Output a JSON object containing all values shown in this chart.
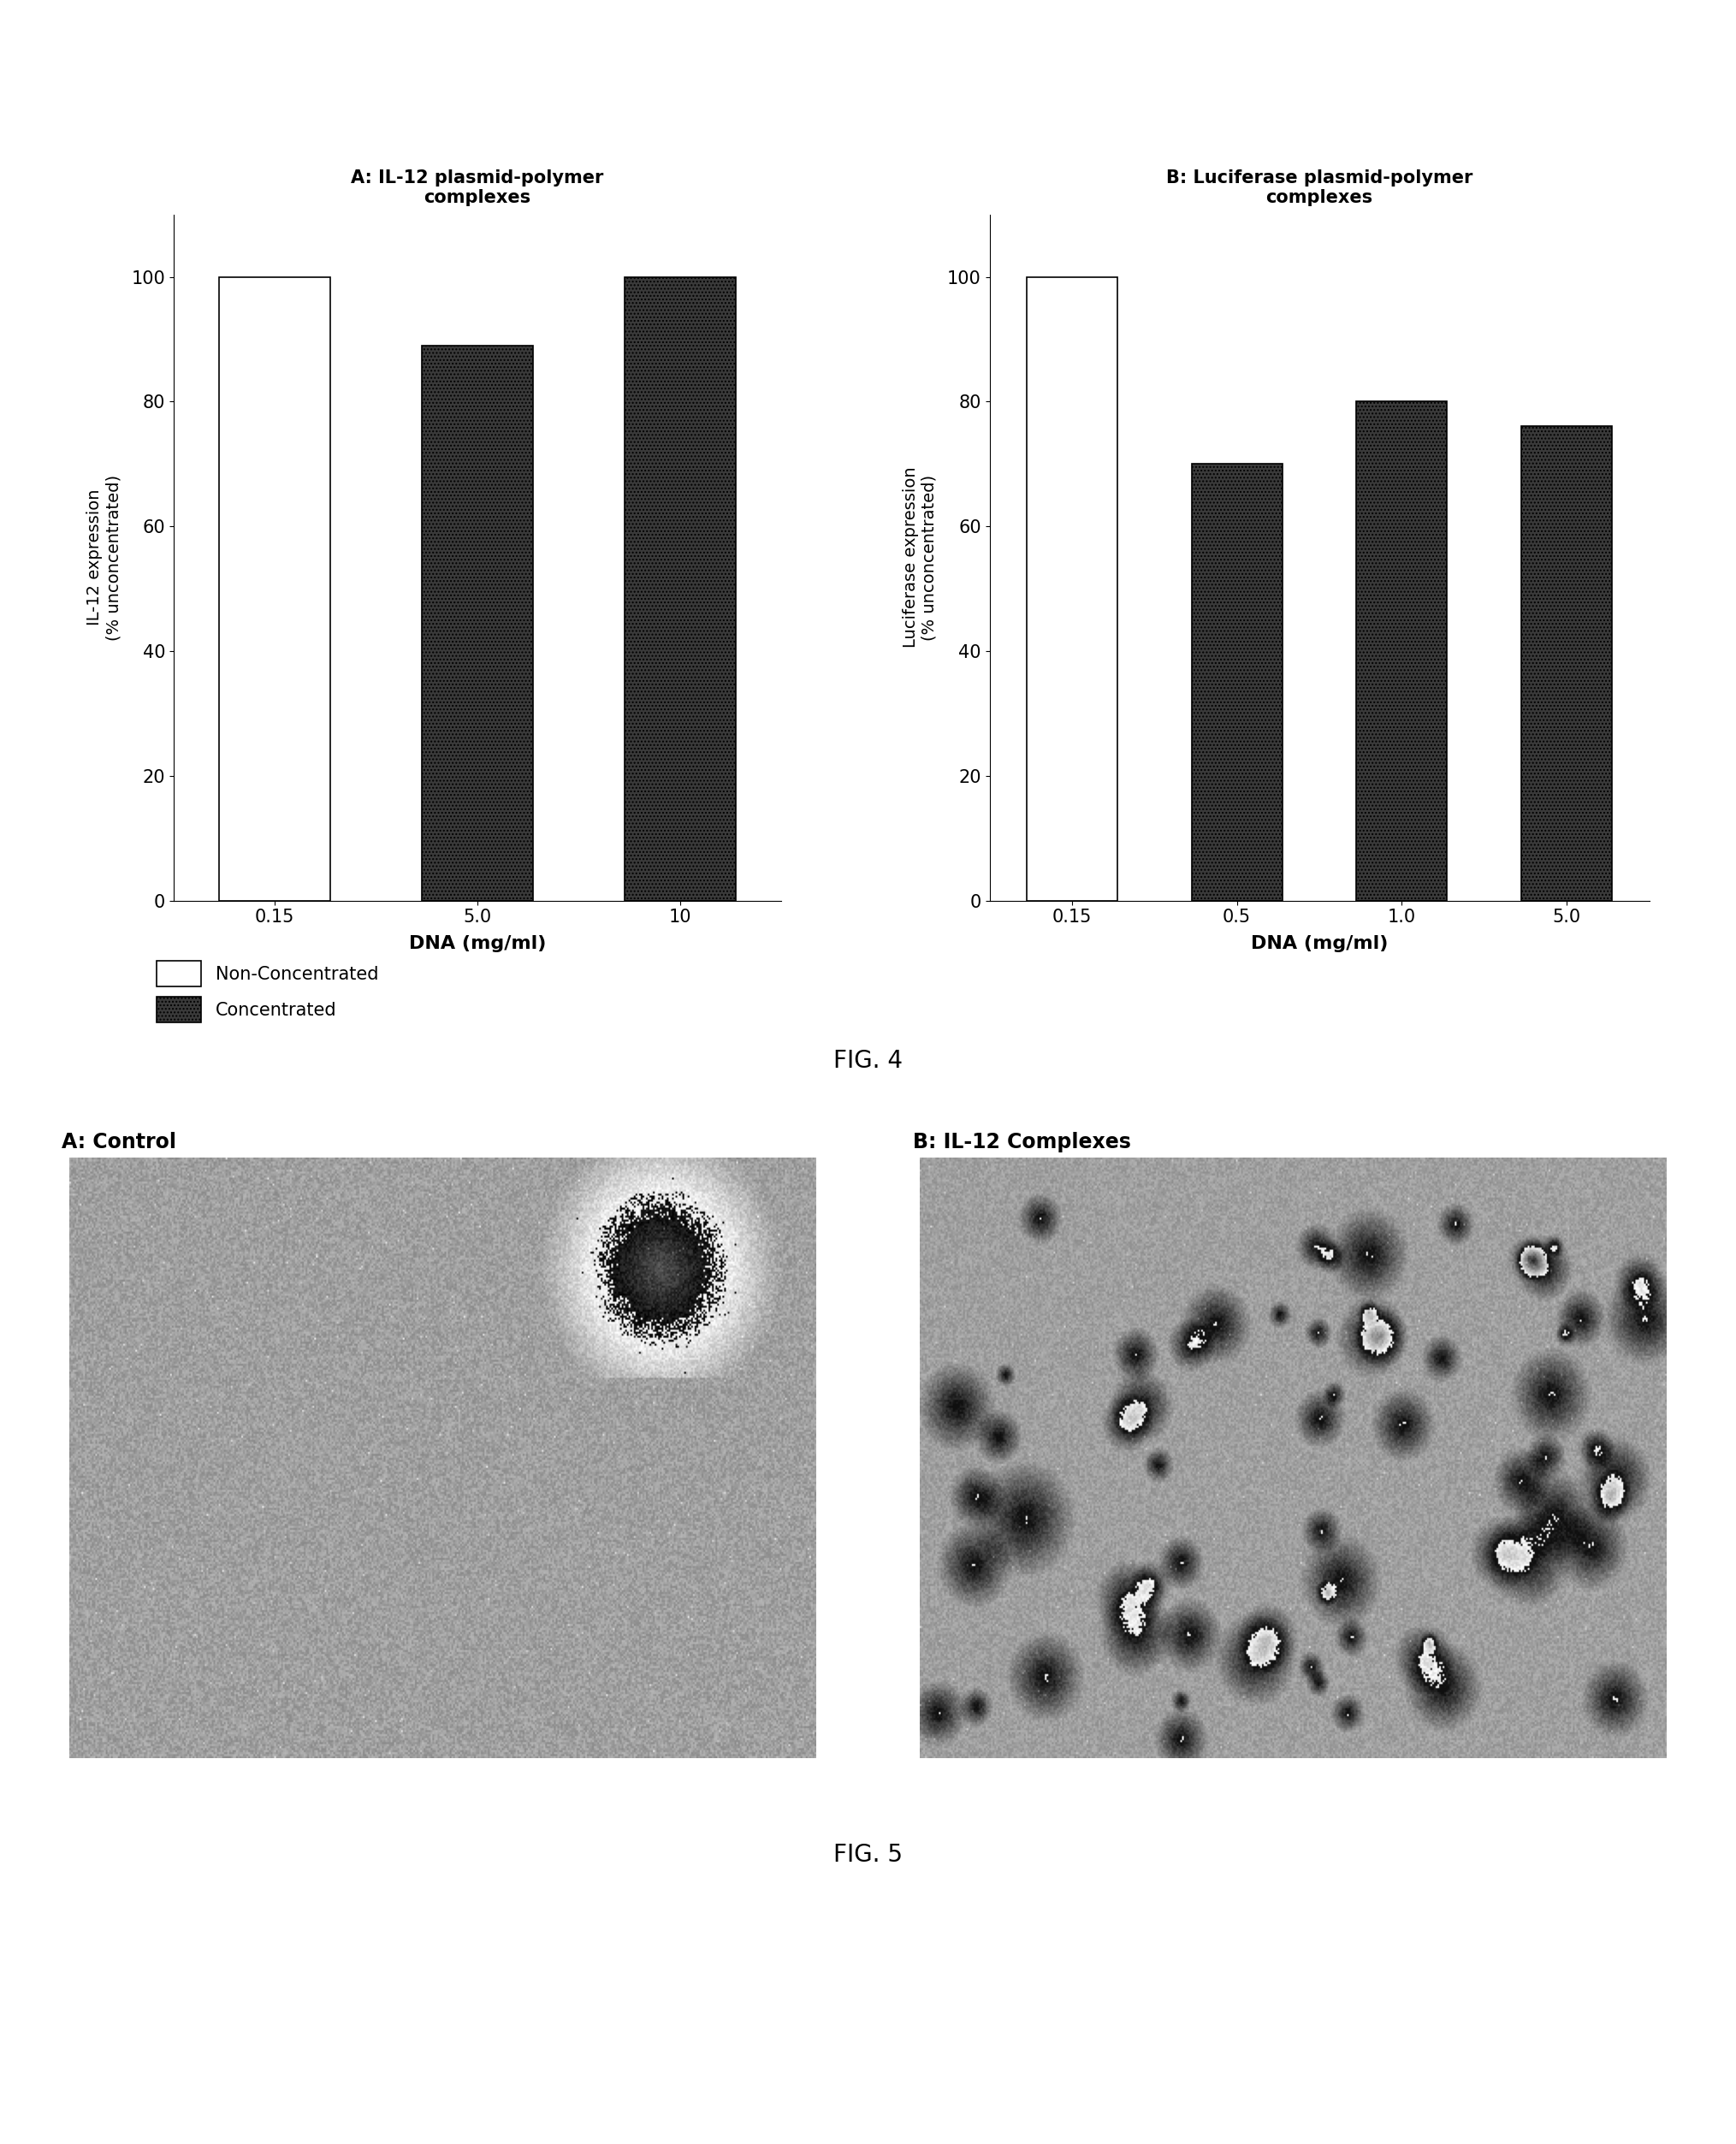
{
  "fig4": {
    "panel_A": {
      "title": "A: IL-12 plasmid-polymer\ncomplexes",
      "xlabel": "DNA (mg/ml)",
      "ylabel": "IL-12 expression\n(% unconcentrated)",
      "categories": [
        "0.15",
        "5.0",
        "10"
      ],
      "values": [
        100,
        89,
        100
      ],
      "colors": [
        "white",
        "#3a3a3a",
        "#3a3a3a"
      ],
      "edgecolors": [
        "black",
        "black",
        "black"
      ]
    },
    "panel_B": {
      "title": "B: Luciferase plasmid-polymer\ncomplexes",
      "xlabel": "DNA (mg/ml)",
      "ylabel": "Luciferase expression\n(% unconcentrated)",
      "categories": [
        "0.15",
        "0.5",
        "1.0",
        "5.0"
      ],
      "values": [
        100,
        70,
        80,
        76
      ],
      "colors": [
        "white",
        "#3a3a3a",
        "#3a3a3a",
        "#3a3a3a"
      ],
      "edgecolors": [
        "black",
        "black",
        "black",
        "black"
      ]
    },
    "legend": {
      "non_concentrated_label": "Non-Concentrated",
      "concentrated_label": "Concentrated"
    },
    "fig_label": "FIG. 4",
    "ylim": [
      0,
      110
    ],
    "yticks": [
      0,
      20,
      40,
      60,
      80,
      100
    ]
  },
  "fig5": {
    "panel_A_title": "A: Control",
    "panel_B_title": "B: IL-12 Complexes",
    "fig_label": "FIG. 5"
  }
}
